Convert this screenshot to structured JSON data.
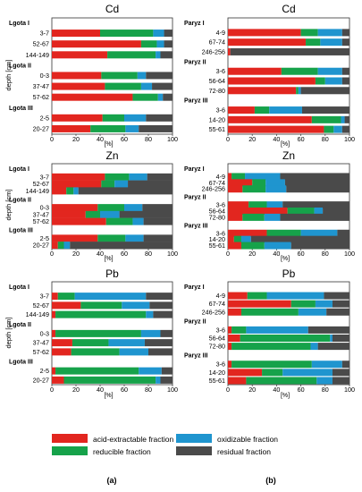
{
  "figure": {
    "panel_labels": [
      "(a)",
      "(b)"
    ]
  },
  "colors": {
    "acid-extractable fraction": "#e2261f",
    "reducible fraction": "#16a24a",
    "oxidizable fraction": "#1f95cf",
    "residual fraction": "#4a4a4a"
  },
  "legend": [
    "acid-extractable fraction",
    "oxidizable fraction",
    "reducible fraction",
    "residual fraction"
  ],
  "chart_data": [
    {
      "type": "bar",
      "stacked": true,
      "orientation": "horizontal",
      "title": "Cd",
      "xlabel": "[%]",
      "ylabel": "depth [cm]",
      "xlim": [
        0,
        100
      ],
      "xticks": [
        0,
        20,
        40,
        60,
        80,
        100
      ],
      "series_order": [
        "acid-extractable fraction",
        "reducible fraction",
        "oxidizable fraction",
        "residual fraction"
      ],
      "groups": [
        {
          "name": "Lgota I",
          "rows": [
            {
              "label": "3-7",
              "values": [
                40,
                44,
                9,
                7
              ]
            },
            {
              "label": "52-67",
              "values": [
                74,
                13,
                6,
                7
              ]
            },
            {
              "label": "144-149",
              "values": [
                46,
                40,
                4,
                10
              ]
            }
          ]
        },
        {
          "name": "Lgota II",
          "rows": [
            {
              "label": "0-3",
              "values": [
                41,
                30,
                7,
                22
              ]
            },
            {
              "label": "37-47",
              "values": [
                44,
                30,
                9,
                17
              ]
            },
            {
              "label": "57-62",
              "values": [
                67,
                21,
                4,
                8
              ]
            }
          ]
        },
        {
          "name": "Lgota III",
          "rows": [
            {
              "label": "2-5",
              "values": [
                42,
                18,
                18,
                22
              ]
            },
            {
              "label": "20-27",
              "values": [
                32,
                29,
                11,
                28
              ]
            }
          ]
        }
      ]
    },
    {
      "type": "bar",
      "stacked": true,
      "orientation": "horizontal",
      "title": "Cd",
      "xlabel": "[%]",
      "ylabel": "",
      "xlim": [
        0,
        100
      ],
      "xticks": [
        0,
        20,
        40,
        60,
        80,
        100
      ],
      "series_order": [
        "acid-extractable fraction",
        "reducible fraction",
        "oxidizable fraction",
        "residual fraction"
      ],
      "groups": [
        {
          "name": "Paryz I",
          "rows": [
            {
              "label": "4-9",
              "values": [
                60,
                14,
                20,
                6
              ]
            },
            {
              "label": "67-74",
              "values": [
                64,
                12,
                18,
                6
              ]
            },
            {
              "label": "246-256",
              "values": [
                2,
                0,
                0,
                98
              ]
            }
          ]
        },
        {
          "name": "Paryz II",
          "rows": [
            {
              "label": "3-6",
              "values": [
                44,
                30,
                20,
                6
              ]
            },
            {
              "label": "56-64",
              "values": [
                72,
                8,
                14,
                6
              ]
            },
            {
              "label": "72-80",
              "values": [
                56,
                2,
                2,
                40
              ]
            }
          ]
        },
        {
          "name": "Paryz III",
          "rows": [
            {
              "label": "3-6",
              "values": [
                22,
                12,
                27,
                39
              ]
            },
            {
              "label": "14-20",
              "values": [
                69,
                24,
                3,
                4
              ]
            },
            {
              "label": "55-61",
              "values": [
                79,
                8,
                7,
                6
              ]
            }
          ]
        }
      ]
    },
    {
      "type": "bar",
      "stacked": true,
      "orientation": "horizontal",
      "title": "Zn",
      "xlabel": "[%]",
      "ylabel": "depth [cm]",
      "xlim": [
        0,
        100
      ],
      "xticks": [
        0,
        20,
        40,
        60,
        80,
        100
      ],
      "series_order": [
        "acid-extractable fraction",
        "reducible fraction",
        "oxidizable fraction",
        "residual fraction"
      ],
      "groups": [
        {
          "name": "Lgota I",
          "rows": [
            {
              "label": "3-7",
              "values": [
                44,
                20,
                15,
                21
              ]
            },
            {
              "label": "52-67",
              "values": [
                41,
                11,
                11,
                37
              ]
            },
            {
              "label": "144-149",
              "values": [
                12,
                6,
                4,
                78
              ]
            }
          ]
        },
        {
          "name": "Lgota II",
          "rows": [
            {
              "label": "0-3",
              "values": [
                38,
                22,
                15,
                25
              ]
            },
            {
              "label": "37-47",
              "values": [
                28,
                12,
                16,
                44
              ]
            },
            {
              "label": "57-62",
              "values": [
                45,
                22,
                9,
                24
              ]
            }
          ]
        },
        {
          "name": "Lgota III",
          "rows": [
            {
              "label": "2-5",
              "values": [
                38,
                23,
                15,
                24
              ]
            },
            {
              "label": "20-27",
              "values": [
                5,
                5,
                5,
                85
              ]
            }
          ]
        }
      ]
    },
    {
      "type": "bar",
      "stacked": true,
      "orientation": "horizontal",
      "title": "Zn",
      "xlabel": "[%]",
      "ylabel": "",
      "xlim": [
        0,
        100
      ],
      "xticks": [
        0,
        20,
        40,
        60,
        80,
        100
      ],
      "series_order": [
        "acid-extractable fraction",
        "reducible fraction",
        "oxidizable fraction",
        "residual fraction"
      ],
      "groups": [
        {
          "name": "Paryz I",
          "rows": [
            {
              "label": "4-9",
              "values": [
                3,
                11,
                29,
                57
              ]
            },
            {
              "label": "67-74",
              "values": [
                20,
                11,
                16,
                53
              ]
            },
            {
              "label": "246-256",
              "values": [
                12,
                19,
                17,
                52
              ]
            }
          ]
        },
        {
          "name": "Paryz II",
          "rows": [
            {
              "label": "3-6",
              "values": [
                17,
                15,
                13,
                55
              ]
            },
            {
              "label": "56-64",
              "values": [
                49,
                22,
                7,
                22
              ]
            },
            {
              "label": "72-80",
              "values": [
                12,
                18,
                13,
                57
              ]
            }
          ]
        },
        {
          "name": "Paryz III",
          "rows": [
            {
              "label": "3-6",
              "values": [
                32,
                28,
                30,
                10
              ]
            },
            {
              "label": "14-20",
              "values": [
                5,
                6,
                8,
                81
              ]
            },
            {
              "label": "55-61",
              "values": [
                11,
                19,
                22,
                48
              ]
            }
          ]
        }
      ]
    },
    {
      "type": "bar",
      "stacked": true,
      "orientation": "horizontal",
      "title": "Pb",
      "xlabel": "[%]",
      "ylabel": "depth [cm]",
      "xlim": [
        0,
        100
      ],
      "xticks": [
        0,
        20,
        40,
        60,
        80,
        100
      ],
      "series_order": [
        "acid-extractable fraction",
        "reducible fraction",
        "oxidizable fraction",
        "residual fraction"
      ],
      "groups": [
        {
          "name": "Lgota I",
          "rows": [
            {
              "label": "3-7",
              "values": [
                5,
                14,
                59,
                22
              ]
            },
            {
              "label": "52-67",
              "values": [
                24,
                34,
                23,
                19
              ]
            },
            {
              "label": "144-149",
              "values": [
                3,
                75,
                6,
                16
              ]
            }
          ]
        },
        {
          "name": "Lgota II",
          "rows": [
            {
              "label": "0-3",
              "values": [
                3,
                71,
                16,
                10
              ]
            },
            {
              "label": "37-47",
              "values": [
                17,
                30,
                30,
                23
              ]
            },
            {
              "label": "57-62",
              "values": [
                16,
                40,
                24,
                20
              ]
            }
          ]
        },
        {
          "name": "Lgota III",
          "rows": [
            {
              "label": "2-5",
              "values": [
                3,
                69,
                19,
                9
              ]
            },
            {
              "label": "20-27",
              "values": [
                10,
                76,
                4,
                10
              ]
            }
          ]
        }
      ]
    },
    {
      "type": "bar",
      "stacked": true,
      "orientation": "horizontal",
      "title": "Pb",
      "xlabel": "[%]",
      "ylabel": "",
      "xlim": [
        0,
        100
      ],
      "xticks": [
        0,
        20,
        40,
        60,
        80,
        100
      ],
      "series_order": [
        "acid-extractable fraction",
        "reducible fraction",
        "oxidizable fraction",
        "residual fraction"
      ],
      "groups": [
        {
          "name": "Paryz I",
          "rows": [
            {
              "label": "4-9",
              "values": [
                16,
                16,
                47,
                21
              ]
            },
            {
              "label": "67-74",
              "values": [
                52,
                20,
                14,
                14
              ]
            },
            {
              "label": "246-256",
              "values": [
                11,
                47,
                23,
                19
              ]
            }
          ]
        },
        {
          "name": "Paryz II",
          "rows": [
            {
              "label": "3-6",
              "values": [
                3,
                12,
                51,
                34
              ]
            },
            {
              "label": "56-64",
              "values": [
                10,
                74,
                2,
                14
              ]
            },
            {
              "label": "72-80",
              "values": [
                3,
                65,
                6,
                26
              ]
            }
          ]
        },
        {
          "name": "Paryz III",
          "rows": [
            {
              "label": "3-6",
              "values": [
                3,
                66,
                25,
                6
              ]
            },
            {
              "label": "14-20",
              "values": [
                28,
                17,
                41,
                14
              ]
            },
            {
              "label": "55-61",
              "values": [
                15,
                58,
                13,
                14
              ]
            }
          ]
        }
      ]
    }
  ]
}
